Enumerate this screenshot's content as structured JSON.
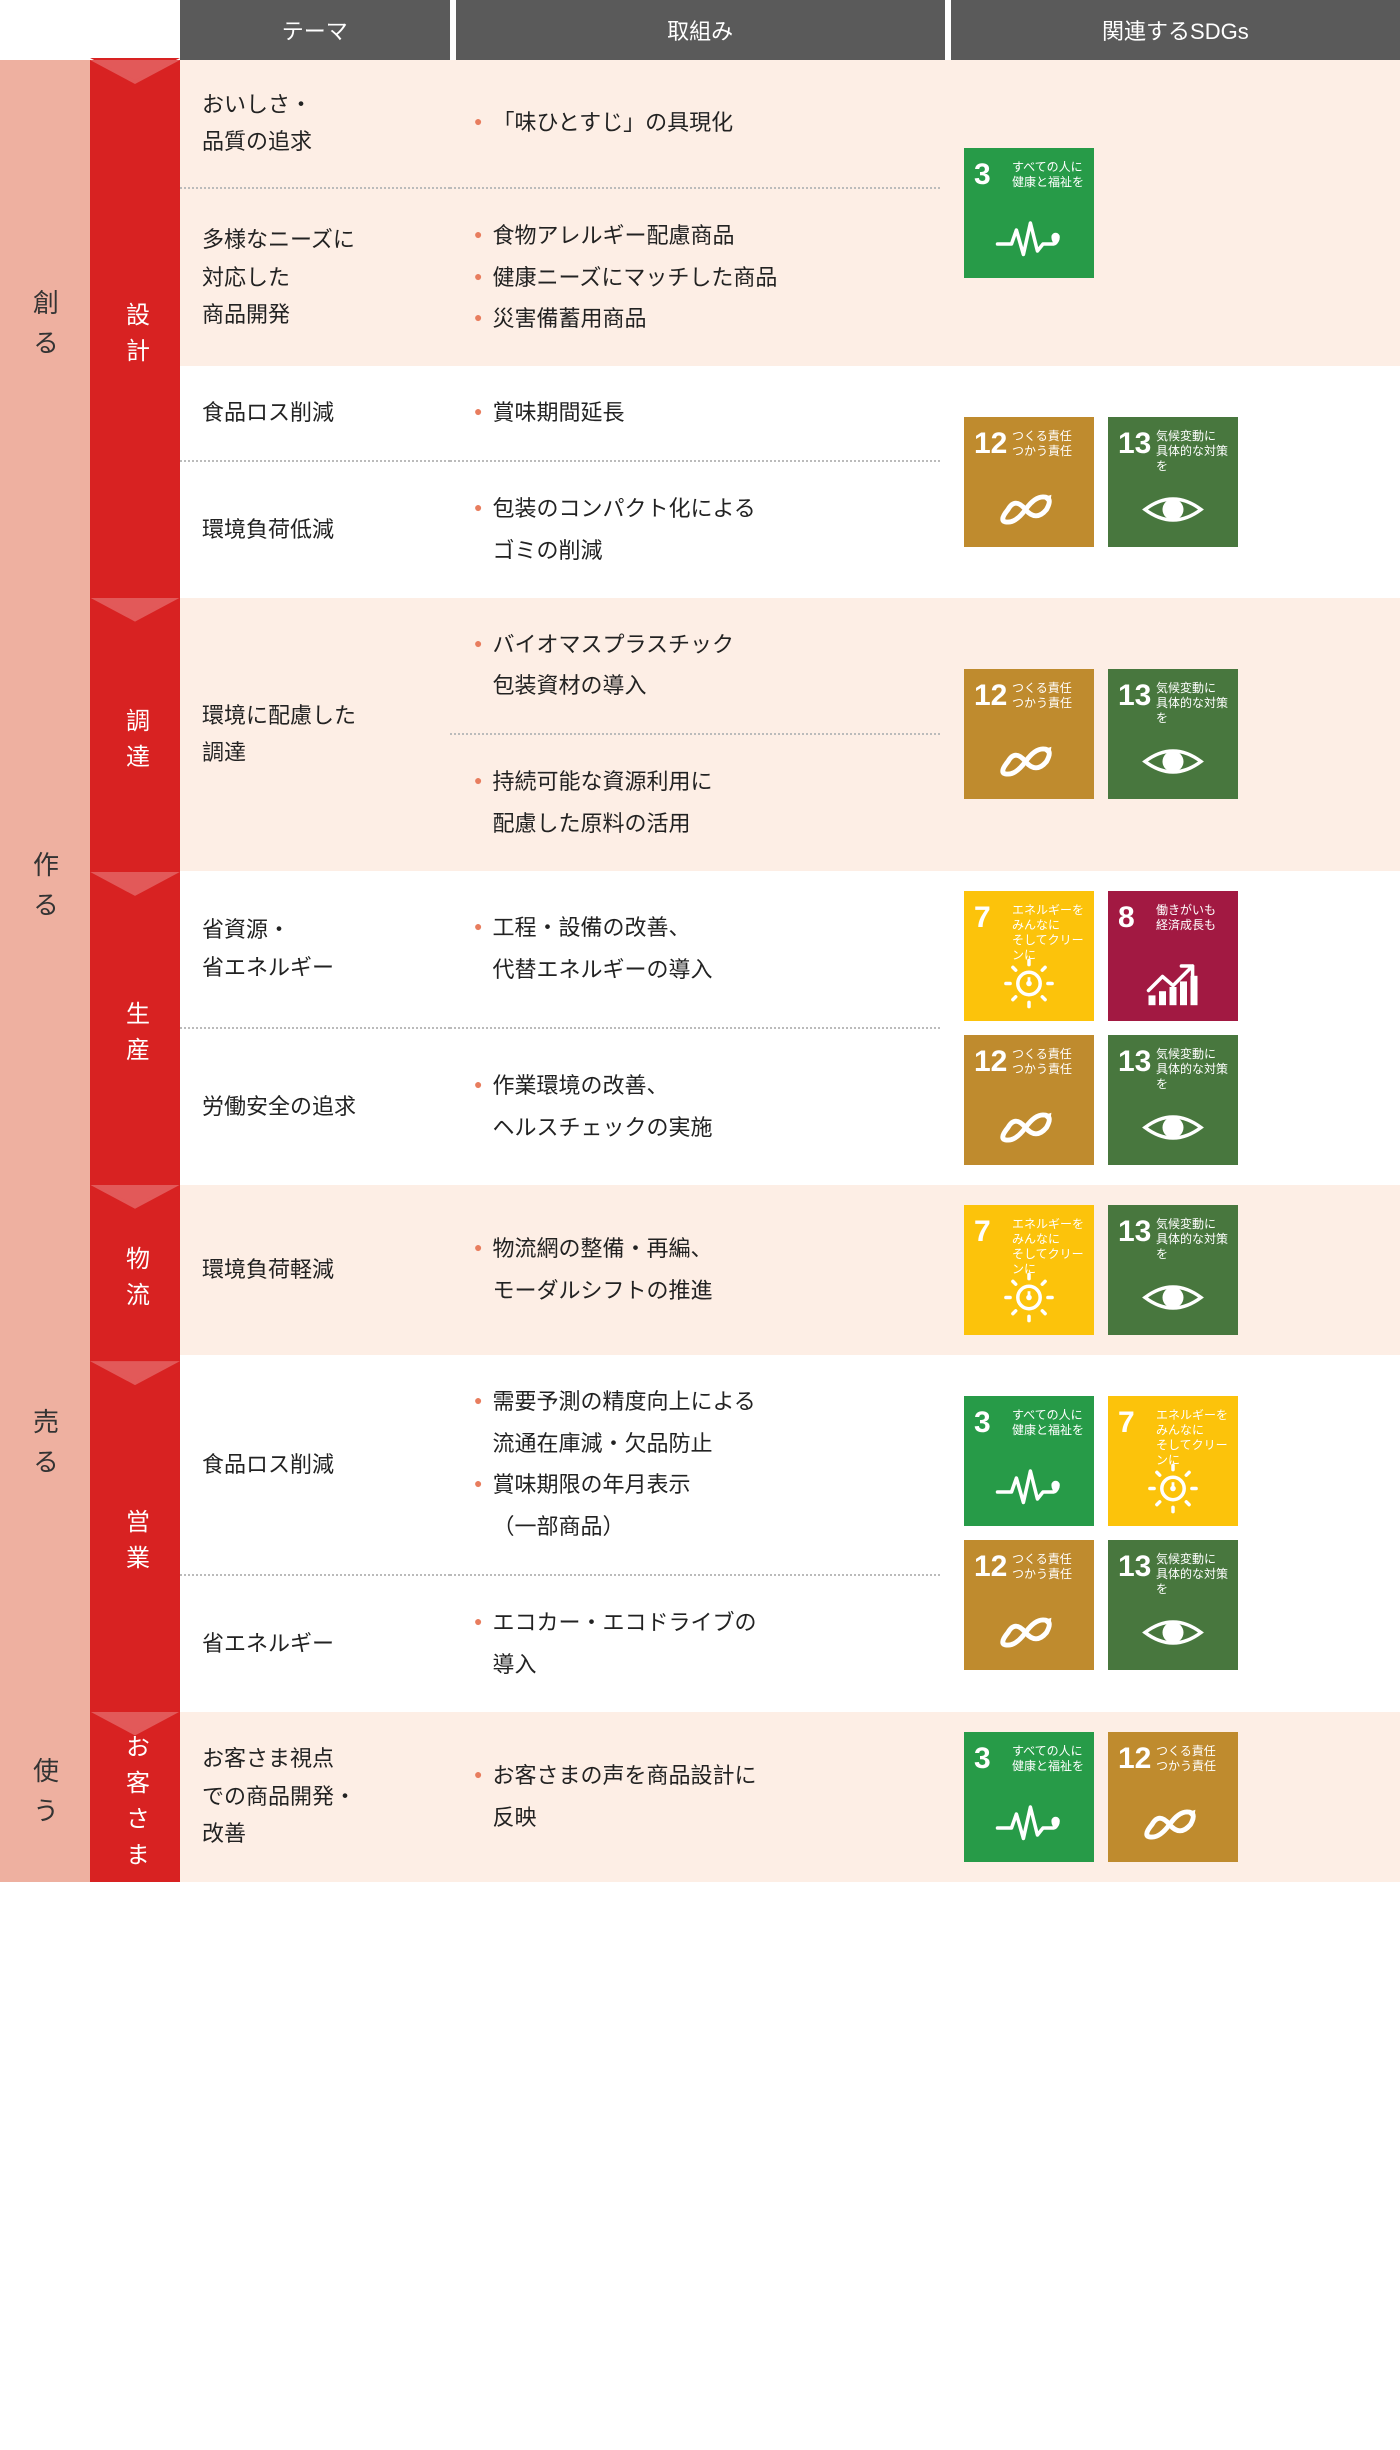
{
  "colors": {
    "phase_bg": {
      "1": "#eeb0a0",
      "2": "#eeb0a0",
      "3": "#eeb0a0",
      "4": "#eeb0a0"
    },
    "subphase_bg": "#d82222",
    "row_bg_odd": "#fdeee5",
    "row_bg_even": "#ffffff",
    "header_bg": "#5a5a5a",
    "bullet": "#e87d5e"
  },
  "headers": {
    "theme": "テーマ",
    "effort": "取組み",
    "sdgs": "関連するSDGs"
  },
  "sdg_defs": {
    "3": {
      "num": "3",
      "label": "すべての人に\n健康と福祉を",
      "color": "#279b48",
      "icon": "health"
    },
    "7": {
      "num": "7",
      "label": "エネルギーをみんなに\nそしてクリーンに",
      "color": "#fcc30b",
      "icon": "sun"
    },
    "8": {
      "num": "8",
      "label": "働きがいも\n経済成長も",
      "color": "#a21942",
      "icon": "growth"
    },
    "12": {
      "num": "12",
      "label": "つくる責任\nつかう責任",
      "color": "#bf8b2e",
      "icon": "infinity"
    },
    "13": {
      "num": "13",
      "label": "気候変動に\n具体的な対策を",
      "color": "#48773e",
      "icon": "eye"
    }
  },
  "phases": [
    {
      "label": "創る",
      "bg": "#eeb0a0",
      "subphases": [
        {
          "label": "設計",
          "bg": "#d82222",
          "groups": [
            {
              "sdgs": [
                "3"
              ],
              "alt": "odd",
              "rows": [
                {
                  "theme": "おいしさ・\n品質の追求",
                  "efforts": [
                    "「味ひとすじ」の具現化"
                  ],
                  "border": "none"
                },
                {
                  "theme": "多様なニーズに\n対応した\n商品開発",
                  "efforts": [
                    "食物アレルギー配慮商品",
                    "健康ニーズにマッチした商品",
                    "災害備蓄用商品"
                  ],
                  "border": "dotted"
                }
              ]
            },
            {
              "sdgs": [
                "12",
                "13"
              ],
              "alt": "even",
              "rows": [
                {
                  "theme": "食品ロス削減",
                  "efforts": [
                    "賞味期間延長"
                  ],
                  "border": "none"
                },
                {
                  "theme": "環境負荷低減",
                  "efforts": [
                    "包装のコンパクト化による\nゴミの削減"
                  ],
                  "border": "dotted"
                }
              ]
            }
          ]
        }
      ]
    },
    {
      "label": "作る",
      "bg": "#eeb0a0",
      "subphases": [
        {
          "label": "調達",
          "bg": "#d82222",
          "groups": [
            {
              "sdgs": [
                "12",
                "13"
              ],
              "alt": "odd",
              "rows": [
                {
                  "theme": "環境に配慮した\n調達",
                  "efforts": [
                    "バイオマスプラスチック\n包装資材の導入"
                  ],
                  "border": "none",
                  "theme_rowspan": 2
                },
                {
                  "theme": "",
                  "efforts": [
                    "持続可能な資源利用に\n配慮した原料の活用"
                  ],
                  "border": "dotted",
                  "skip_theme": true
                }
              ]
            }
          ]
        },
        {
          "label": "生産",
          "bg": "#d82222",
          "groups": [
            {
              "sdgs": [
                "7",
                "8",
                "12",
                "13"
              ],
              "alt": "even",
              "rows": [
                {
                  "theme": "省資源・\n省エネルギー",
                  "efforts": [
                    "工程・設備の改善、\n代替エネルギーの導入"
                  ],
                  "border": "none"
                },
                {
                  "theme": "労働安全の追求",
                  "efforts": [
                    "作業環境の改善、\nヘルスチェックの実施"
                  ],
                  "border": "dotted"
                }
              ]
            }
          ]
        }
      ]
    },
    {
      "label": "売る",
      "bg": "#eeb0a0",
      "subphases": [
        {
          "label": "物流",
          "bg": "#d82222",
          "groups": [
            {
              "sdgs": [
                "7",
                "13"
              ],
              "alt": "odd",
              "rows": [
                {
                  "theme": "環境負荷軽減",
                  "efforts": [
                    "物流網の整備・再編、\nモーダルシフトの推進"
                  ],
                  "border": "none"
                }
              ]
            }
          ]
        },
        {
          "label": "営業",
          "bg": "#d82222",
          "groups": [
            {
              "sdgs": [
                "3",
                "7",
                "12",
                "13"
              ],
              "alt": "even",
              "rows": [
                {
                  "theme": "食品ロス削減",
                  "efforts": [
                    "需要予測の精度向上による\n流通在庫減・欠品防止",
                    "賞味期限の年月表示\n（一部商品）"
                  ],
                  "border": "none"
                },
                {
                  "theme": "省エネルギー",
                  "efforts": [
                    "エコカー・エコドライブの\n導入"
                  ],
                  "border": "dotted"
                }
              ]
            }
          ]
        }
      ]
    },
    {
      "label": "使う",
      "bg": "#eeb0a0",
      "subphases": [
        {
          "label": "お客さま",
          "bg": "#d82222",
          "groups": [
            {
              "sdgs": [
                "3",
                "12"
              ],
              "alt": "odd",
              "rows": [
                {
                  "theme": "お客さま視点\nでの商品開発・\n改善",
                  "efforts": [
                    "お客さまの声を商品設計に\n反映"
                  ],
                  "border": "none"
                }
              ]
            }
          ]
        }
      ]
    }
  ]
}
